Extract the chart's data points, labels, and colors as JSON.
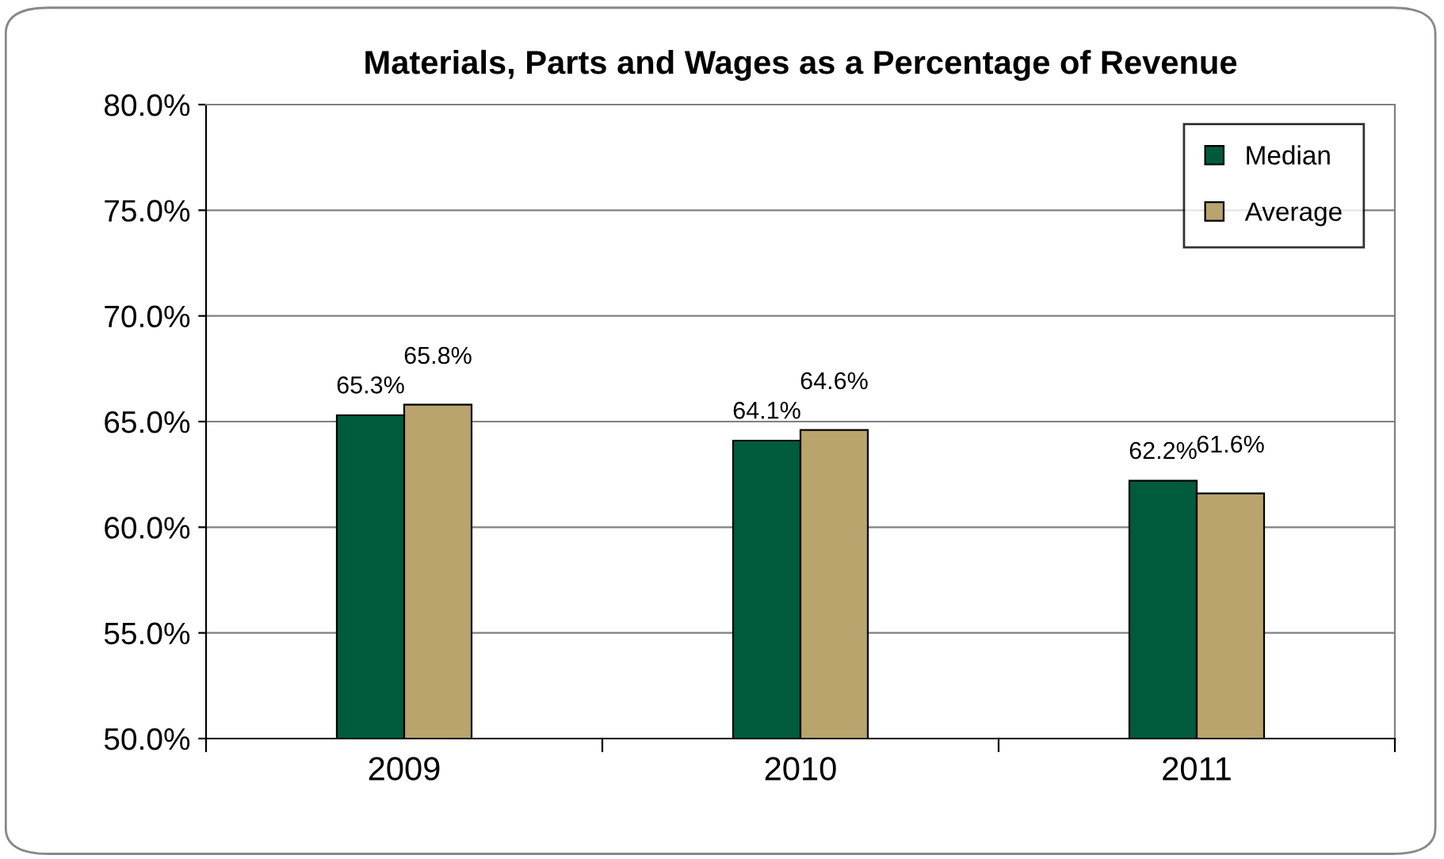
{
  "chart_data": {
    "type": "bar",
    "title": "Materials, Parts and Wages as a Percentage of Revenue",
    "categories": [
      "2009",
      "2010",
      "2011"
    ],
    "series": [
      {
        "name": "Median",
        "color": "#005a3c",
        "values": [
          65.3,
          64.1,
          62.2
        ],
        "value_labels": [
          "65.3%",
          "64.1%",
          "62.2%"
        ]
      },
      {
        "name": "Average",
        "color": "#b8a46c",
        "values": [
          65.8,
          64.6,
          61.6
        ],
        "value_labels": [
          "65.8%",
          "64.6%",
          "61.6%"
        ]
      }
    ],
    "ylim": [
      50,
      80
    ],
    "yticks": [
      {
        "value": 50,
        "label": "50.0%"
      },
      {
        "value": 55,
        "label": "55.0%"
      },
      {
        "value": 60,
        "label": "60.0%"
      },
      {
        "value": 65,
        "label": "65.0%"
      },
      {
        "value": 70,
        "label": "70.0%"
      },
      {
        "value": 75,
        "label": "75.0%"
      },
      {
        "value": 80,
        "label": "80.0%"
      }
    ],
    "grid": "y",
    "legend": "top right"
  }
}
